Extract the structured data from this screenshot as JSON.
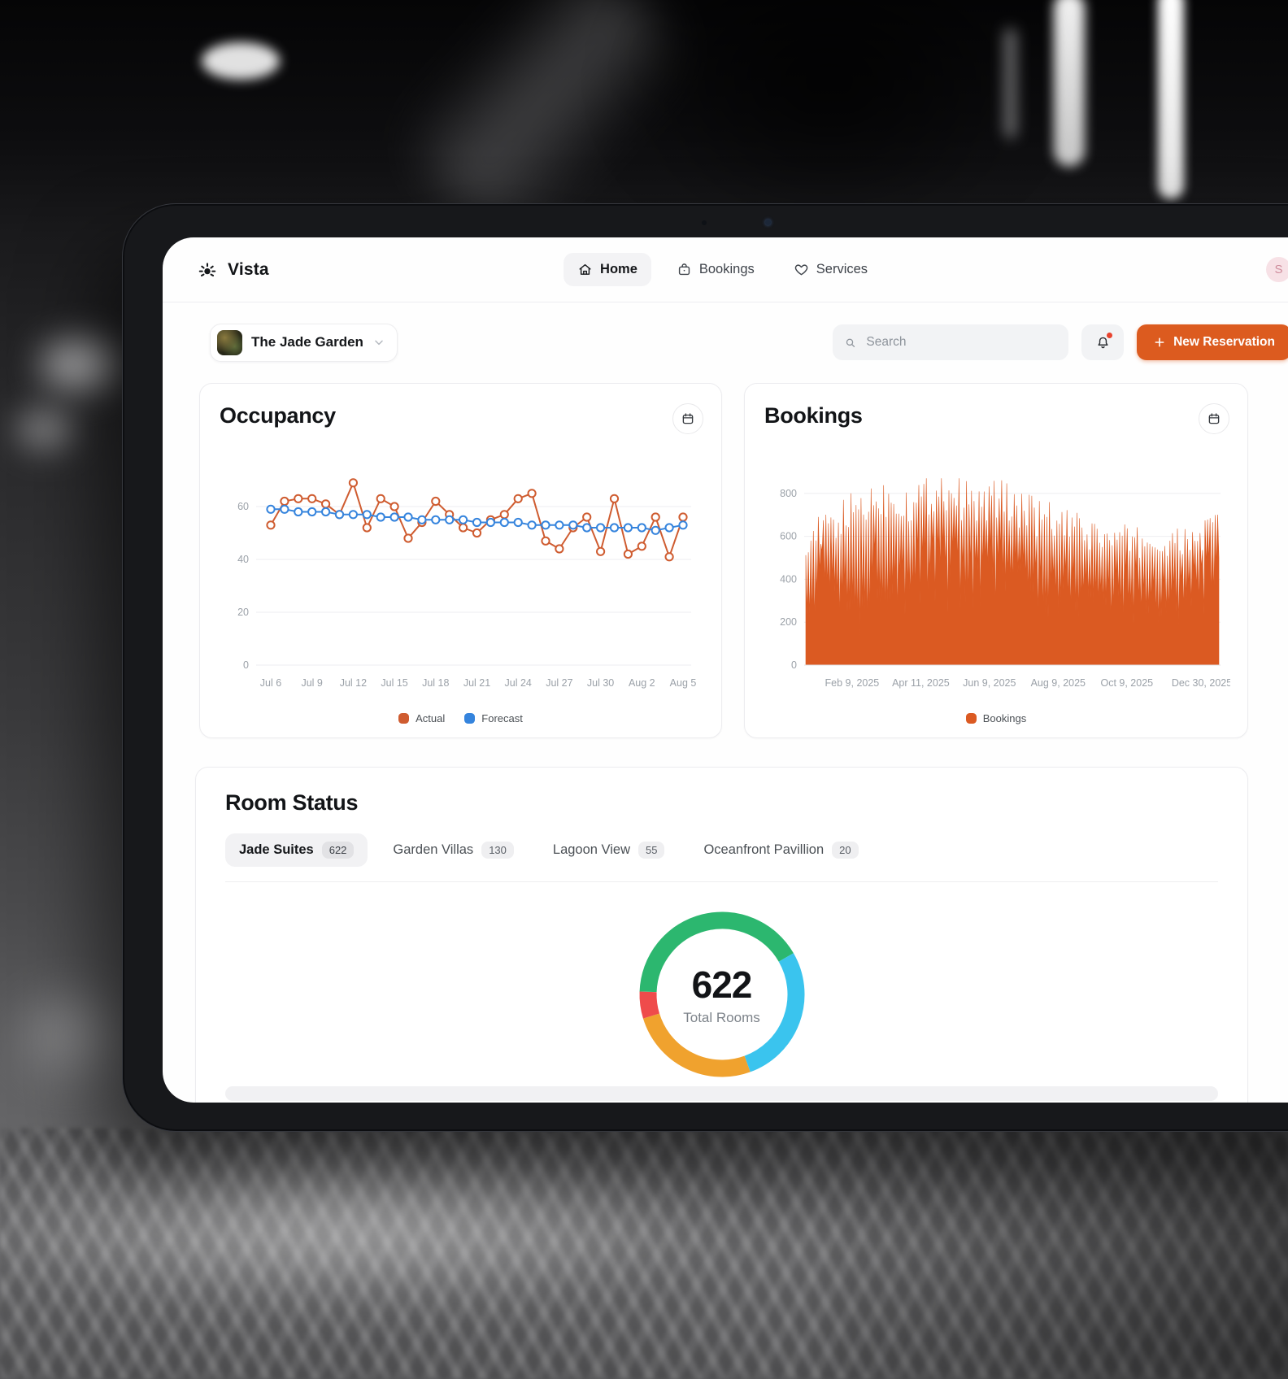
{
  "app": {
    "brand": "Vista",
    "nav": [
      {
        "label": "Home",
        "active": true
      },
      {
        "label": "Bookings",
        "active": false
      },
      {
        "label": "Services",
        "active": false
      }
    ],
    "avatar_initial": "S"
  },
  "toolbar": {
    "property_name": "The Jade Garden",
    "search_placeholder": "Search",
    "new_reservation_label": "New Reservation"
  },
  "room_status": {
    "title": "Room Status",
    "tabs": [
      {
        "label": "Jade Suites",
        "count": "622",
        "active": true
      },
      {
        "label": "Garden Villas",
        "count": "130",
        "active": false
      },
      {
        "label": "Lagoon View",
        "count": "55",
        "active": false
      },
      {
        "label": "Oceanfront Pavillion",
        "count": "20",
        "active": false
      }
    ]
  },
  "colors": {
    "accent_orange": "#dc5b1f",
    "notification_red": "#e8432e",
    "avatar_pink": "#f7e1e6"
  },
  "chart_data": [
    {
      "id": "occupancy",
      "type": "line",
      "title": "Occupancy",
      "x_tick_labels": [
        "Jul 6",
        "Jul 9",
        "Jul 12",
        "Jul 15",
        "Jul 18",
        "Jul 21",
        "Jul 24",
        "Jul 27",
        "Jul 30",
        "Aug 2",
        "Aug 5"
      ],
      "yticks": [
        0,
        20,
        40,
        60
      ],
      "ylim": [
        0,
        80
      ],
      "grid": true,
      "legend_position": "bottom",
      "series": [
        {
          "name": "Actual",
          "color": "#cf5c30",
          "values": [
            53,
            62,
            63,
            63,
            61,
            57,
            69,
            52,
            63,
            60,
            48,
            54,
            62,
            57,
            52,
            50,
            55,
            57,
            63,
            65,
            47,
            44,
            52,
            56,
            43,
            63,
            42,
            45,
            56,
            41,
            56
          ]
        },
        {
          "name": "Forecast",
          "color": "#3584dd",
          "values": [
            59,
            59,
            58,
            58,
            58,
            57,
            57,
            57,
            56,
            56,
            56,
            55,
            55,
            55,
            55,
            54,
            54,
            54,
            54,
            53,
            53,
            53,
            53,
            52,
            52,
            52,
            52,
            52,
            51,
            52,
            53
          ]
        }
      ]
    },
    {
      "id": "bookings",
      "type": "area-spiky",
      "title": "Bookings",
      "x_tick_labels": [
        "Feb 9, 2025",
        "Apr 11, 2025",
        "Jun 9, 2025",
        "Aug 9, 2025",
        "Oct 9, 2025",
        "Dec 30, 2025"
      ],
      "x_tick_positions": [
        0.115,
        0.28,
        0.445,
        0.61,
        0.775,
        0.955
      ],
      "yticks": [
        0,
        200,
        400,
        600,
        800
      ],
      "ylim": [
        0,
        1000
      ],
      "grid": true,
      "legend": [
        "Bookings"
      ],
      "color": "#db5a22",
      "n_points": 330,
      "envelope_high": [
        610,
        640,
        690,
        755,
        790,
        805,
        775,
        815,
        855,
        805,
        765,
        800,
        780,
        725,
        700,
        665,
        640,
        615,
        595,
        600,
        580,
        565,
        590,
        615,
        700
      ],
      "envelope_low": [
        170,
        420,
        380,
        160,
        430,
        415,
        400,
        450,
        430,
        420,
        380,
        435,
        420,
        380,
        355,
        340,
        350,
        330,
        320,
        340,
        310,
        300,
        330,
        355,
        430
      ]
    },
    {
      "id": "room-donut",
      "type": "donut",
      "center_value": "622",
      "center_label": "Total Rooms",
      "start_angle": 272,
      "segments": [
        {
          "name": "segment-green",
          "color": "#2cb76f",
          "degrees": 148
        },
        {
          "name": "segment-cyan",
          "color": "#3ac4ee",
          "degrees": 100
        },
        {
          "name": "segment-amber",
          "color": "#f0a22e",
          "degrees": 93
        },
        {
          "name": "segment-red",
          "color": "#ef4b4b",
          "degrees": 19
        }
      ]
    }
  ]
}
